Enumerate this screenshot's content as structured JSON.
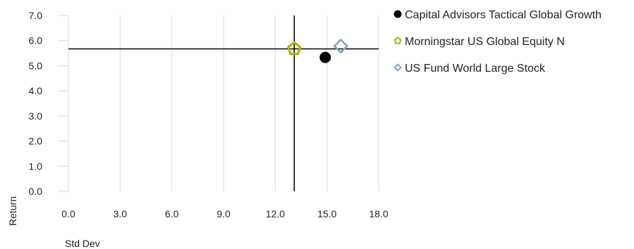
{
  "chart_data": {
    "type": "scatter",
    "xlabel": "Std Dev",
    "ylabel": "Return",
    "xlim": [
      0,
      18
    ],
    "ylim": [
      0,
      7
    ],
    "xticks": [
      "0.0",
      "3.0",
      "6.0",
      "9.0",
      "12.0",
      "15.0",
      "18.0"
    ],
    "yticks": [
      "0.0",
      "1.0",
      "2.0",
      "3.0",
      "4.0",
      "5.0",
      "6.0",
      "7.0"
    ],
    "grid": "vertical",
    "legend_position": "right",
    "crosshair": {
      "x": 13.1,
      "y": 5.67
    },
    "series": [
      {
        "name": "Capital Advisors Tactical Global Growth",
        "marker": "circle",
        "color": "#000000",
        "x": 14.9,
        "y": 5.33
      },
      {
        "name": "Morningstar US Global Equity N",
        "marker": "pentagon",
        "color": "#a8b400",
        "x": 13.1,
        "y": 5.67
      },
      {
        "name": "US Fund World Large Stock",
        "marker": "diamond",
        "color": "#7fa8bd",
        "x": 15.8,
        "y": 5.78
      }
    ]
  }
}
